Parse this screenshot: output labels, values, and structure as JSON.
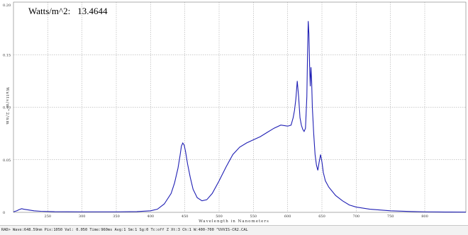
{
  "readout": {
    "label": "Watts/m^2:",
    "value": "13.4644"
  },
  "status_bar": {
    "text": "RAD> Wave:648.59nm Pix:1050 Val: 0.050 Time:960ms Avg:1 Sm:1 Sg:0 Tc:off Z Xt:3 Ch:1 W:400-700 ^UVVIS-CR2.CAL"
  },
  "colors": {
    "line": "#1f1fb4",
    "grid": "#9a9a9a",
    "background": "#ffffff"
  },
  "chart_data": {
    "type": "line",
    "title": "",
    "xlabel": "Wavelength in Nanometers",
    "ylabel": "Watts/m^2/nm",
    "xlim": [
      200,
      860
    ],
    "ylim": [
      0,
      0.2
    ],
    "x_ticks": [
      "250",
      "300",
      "350",
      "400",
      "450",
      "500",
      "550",
      "600",
      "650",
      "700",
      "750",
      "800"
    ],
    "y_ticks": [
      "0",
      "0.05",
      "0.10",
      "0.15",
      "0.20"
    ],
    "grid": true,
    "series": [
      {
        "x": [
          200,
          205,
          208,
          212,
          215,
          220,
          225,
          230,
          240,
          260,
          300,
          350,
          380,
          400,
          410,
          420,
          430,
          435,
          440,
          443,
          445,
          447,
          449,
          451,
          454,
          458,
          462,
          468,
          475,
          482,
          490,
          500,
          510,
          520,
          530,
          540,
          550,
          560,
          570,
          580,
          590,
          600,
          605,
          608,
          610,
          612,
          614,
          616,
          618,
          620,
          622,
          624,
          626,
          628,
          629,
          630,
          631,
          632,
          633,
          634,
          635,
          636,
          638,
          640,
          642,
          644,
          646,
          648,
          650,
          652,
          655,
          660,
          670,
          680,
          690,
          700,
          720,
          750,
          780,
          800,
          830,
          860
        ],
        "y": [
          0.0005,
          0.0015,
          0.0025,
          0.0035,
          0.003,
          0.0025,
          0.002,
          0.0015,
          0.001,
          0.0006,
          0.0005,
          0.0005,
          0.0007,
          0.0015,
          0.003,
          0.008,
          0.018,
          0.028,
          0.042,
          0.054,
          0.063,
          0.066,
          0.064,
          0.058,
          0.046,
          0.033,
          0.022,
          0.014,
          0.011,
          0.012,
          0.018,
          0.03,
          0.043,
          0.055,
          0.062,
          0.066,
          0.069,
          0.072,
          0.076,
          0.08,
          0.083,
          0.082,
          0.083,
          0.09,
          0.097,
          0.108,
          0.125,
          0.11,
          0.09,
          0.083,
          0.079,
          0.077,
          0.08,
          0.11,
          0.15,
          0.182,
          0.17,
          0.14,
          0.12,
          0.138,
          0.125,
          0.1,
          0.075,
          0.055,
          0.045,
          0.04,
          0.048,
          0.055,
          0.048,
          0.038,
          0.03,
          0.024,
          0.016,
          0.011,
          0.007,
          0.005,
          0.003,
          0.0015,
          0.0008,
          0.0005,
          0.0003,
          0.0002
        ]
      }
    ]
  }
}
